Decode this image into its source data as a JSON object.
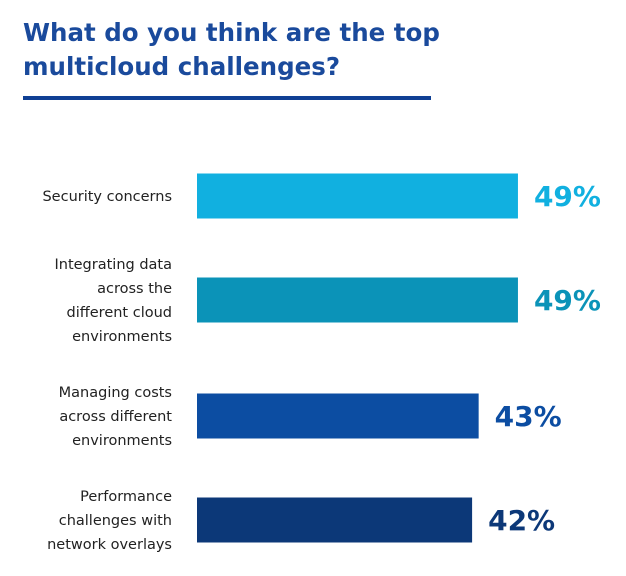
{
  "title_lines": [
    "What do you think are the top",
    "multicloud challenges?"
  ],
  "chart_data": {
    "type": "bar",
    "orientation": "horizontal",
    "categories": [
      [
        "Security concerns"
      ],
      [
        "Integrating data",
        "across the",
        "different cloud",
        "environments"
      ],
      [
        "Managing costs",
        "across different",
        "environments"
      ],
      [
        "Performance",
        "challenges with",
        "network overlays"
      ]
    ],
    "values": [
      49,
      49,
      43,
      42
    ],
    "value_labels": [
      "49%",
      "49%",
      "43%",
      "42%"
    ],
    "bar_colors": [
      "#11b0e0",
      "#0b93b8",
      "#0c4da2",
      "#0c3878"
    ],
    "label_colors": [
      "#11b0e0",
      "#0b93b8",
      "#0c4da2",
      "#0c3878"
    ],
    "title": "What do you think are the top multicloud challenges?",
    "xlabel": "",
    "ylabel": "",
    "xlim": [
      0,
      100
    ],
    "grid": false,
    "legend": "none"
  }
}
